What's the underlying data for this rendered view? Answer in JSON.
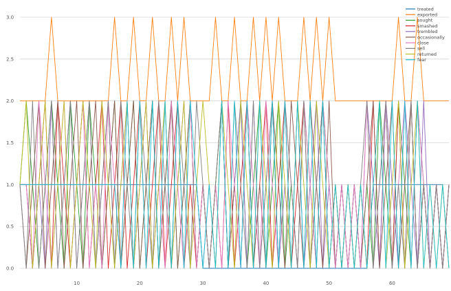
{
  "chart_data": {
    "type": "line",
    "title": "",
    "xlabel": "",
    "ylabel": "",
    "xlim": [
      1,
      69
    ],
    "ylim": [
      0,
      3
    ],
    "grid": true,
    "legend_position": "top-right",
    "x_ticks": [
      10,
      20,
      30,
      40,
      50,
      60
    ],
    "y_ticks": [
      0.0,
      0.5,
      1.0,
      1.5,
      2.0,
      2.5,
      3.0
    ],
    "x_tick_labels": [
      "10",
      "20",
      "30",
      "40",
      "50",
      "60"
    ],
    "y_tick_labels": [
      "0.0",
      "0.5",
      "1.0",
      "1.5",
      "2.0",
      "2.5",
      "3.0"
    ],
    "x": [
      1,
      2,
      3,
      4,
      5,
      6,
      7,
      8,
      9,
      10,
      11,
      12,
      13,
      14,
      15,
      16,
      17,
      18,
      19,
      20,
      21,
      22,
      23,
      24,
      25,
      26,
      27,
      28,
      29,
      30,
      31,
      32,
      33,
      34,
      35,
      36,
      37,
      38,
      39,
      40,
      41,
      42,
      43,
      44,
      45,
      46,
      47,
      48,
      49,
      50,
      51,
      52,
      53,
      54,
      55,
      56,
      57,
      58,
      59,
      60,
      61,
      62,
      63,
      64,
      65,
      66,
      67,
      68,
      69
    ],
    "series": [
      {
        "name": "treated",
        "color": "#1f77b4",
        "values": [
          1,
          1,
          1,
          1,
          1,
          1,
          1,
          1,
          1,
          1,
          1,
          1,
          1,
          1,
          1,
          1,
          1,
          1,
          1,
          1,
          1,
          1,
          1,
          1,
          1,
          1,
          1,
          1,
          1,
          0,
          0,
          0,
          0,
          0,
          0,
          0,
          0,
          0,
          0,
          0,
          0,
          0,
          0,
          0,
          0,
          0,
          0,
          0,
          0,
          0,
          0,
          0,
          0,
          0,
          0,
          0,
          1,
          1,
          1,
          1,
          1,
          1,
          1,
          1,
          1,
          1,
          1,
          1,
          0
        ]
      },
      {
        "name": "exported",
        "color": "#ff7f0e",
        "values": [
          2,
          2,
          2,
          2,
          2,
          3,
          2,
          2,
          2,
          2,
          2,
          2,
          2,
          2,
          2,
          3,
          2,
          2,
          3,
          2,
          2,
          3,
          2,
          2,
          3,
          2,
          3,
          2,
          2,
          2,
          2,
          3,
          2,
          2,
          3,
          2,
          2,
          3,
          2,
          3,
          2,
          3,
          2,
          2,
          2,
          3,
          2,
          3,
          2,
          3,
          2,
          2,
          2,
          2,
          2,
          2,
          2,
          2,
          2,
          2,
          3,
          2,
          2,
          3,
          2,
          2,
          2,
          2,
          2
        ]
      },
      {
        "name": "sought",
        "color": "#2ca02c",
        "values": [
          1,
          2,
          1,
          0,
          1,
          2,
          1,
          0,
          2,
          1,
          0,
          2,
          1,
          0,
          1,
          2,
          0,
          1,
          2,
          0,
          1,
          2,
          0,
          1,
          2,
          0,
          1,
          2,
          0,
          1,
          0,
          1,
          2,
          0,
          1,
          2,
          0,
          1,
          2,
          0,
          1,
          2,
          0,
          1,
          0,
          2,
          1,
          0,
          2,
          1,
          0,
          1,
          0,
          1,
          0,
          1,
          0,
          2,
          1,
          0,
          2,
          1,
          0,
          2,
          1,
          0,
          1,
          0,
          1
        ]
      },
      {
        "name": "smashed",
        "color": "#d62728",
        "values": [
          1,
          1,
          0,
          1,
          2,
          0,
          2,
          1,
          0,
          1,
          2,
          0,
          1,
          2,
          0,
          1,
          2,
          0,
          1,
          2,
          0,
          1,
          2,
          0,
          1,
          2,
          0,
          1,
          0,
          1,
          0,
          1,
          0,
          2,
          0,
          1,
          2,
          0,
          1,
          2,
          0,
          1,
          2,
          0,
          1,
          2,
          0,
          1,
          2,
          0,
          1,
          0,
          1,
          0,
          1,
          0,
          2,
          0,
          2,
          0,
          2,
          0,
          2,
          0,
          1,
          0,
          1,
          0,
          1
        ]
      },
      {
        "name": "trembled",
        "color": "#9467bd",
        "values": [
          1,
          1,
          0,
          1,
          0,
          2,
          0,
          1,
          2,
          0,
          1,
          2,
          0,
          1,
          2,
          0,
          1,
          2,
          0,
          1,
          2,
          0,
          1,
          2,
          0,
          1,
          2,
          0,
          1,
          0,
          1,
          0,
          2,
          0,
          1,
          2,
          0,
          2,
          0,
          1,
          2,
          0,
          1,
          0,
          2,
          0,
          1,
          2,
          0,
          1,
          0,
          1,
          0,
          1,
          0,
          2,
          1,
          0,
          2,
          1,
          0,
          2,
          1,
          0,
          2,
          0,
          1,
          0,
          1
        ]
      },
      {
        "name": "occasionally",
        "color": "#8c564b",
        "values": [
          1,
          0,
          1,
          2,
          0,
          1,
          2,
          0,
          1,
          2,
          0,
          1,
          2,
          0,
          1,
          2,
          0,
          1,
          2,
          0,
          1,
          2,
          0,
          1,
          2,
          0,
          1,
          2,
          0,
          1,
          0,
          1,
          2,
          0,
          1,
          0,
          2,
          0,
          1,
          0,
          2,
          1,
          0,
          2,
          1,
          0,
          2,
          1,
          0,
          2,
          0,
          1,
          0,
          1,
          0,
          1,
          2,
          0,
          1,
          2,
          0,
          1,
          2,
          0,
          1,
          0,
          1,
          0,
          1
        ]
      },
      {
        "name": "close",
        "color": "#e377c2",
        "values": [
          1,
          1,
          0,
          2,
          1,
          0,
          1,
          2,
          0,
          1,
          2,
          0,
          1,
          0,
          2,
          1,
          0,
          2,
          0,
          1,
          2,
          0,
          1,
          0,
          2,
          1,
          0,
          2,
          0,
          1,
          0,
          1,
          0,
          2,
          1,
          0,
          2,
          1,
          0,
          2,
          1,
          0,
          2,
          1,
          0,
          2,
          1,
          0,
          2,
          1,
          0,
          1,
          0,
          1,
          0,
          2,
          0,
          1,
          2,
          0,
          1,
          2,
          0,
          2,
          1,
          0,
          1,
          0,
          1
        ]
      },
      {
        "name": "sell",
        "color": "#7f7f7f",
        "values": [
          1,
          0,
          2,
          0,
          1,
          2,
          0,
          1,
          2,
          0,
          1,
          2,
          0,
          1,
          2,
          0,
          2,
          1,
          0,
          2,
          1,
          0,
          2,
          1,
          0,
          2,
          1,
          0,
          2,
          1,
          0,
          1,
          2,
          0,
          2,
          1,
          0,
          2,
          0,
          1,
          2,
          0,
          2,
          1,
          0,
          2,
          0,
          1,
          2,
          0,
          1,
          0,
          1,
          0,
          1,
          2,
          0,
          1,
          2,
          0,
          1,
          0,
          2,
          0,
          1,
          0,
          1,
          0,
          1
        ]
      },
      {
        "name": "returned",
        "color": "#bcbd22",
        "values": [
          1,
          2,
          0,
          1,
          2,
          0,
          1,
          2,
          0,
          1,
          2,
          1,
          0,
          2,
          1,
          0,
          1,
          2,
          0,
          1,
          2,
          0,
          1,
          2,
          0,
          1,
          2,
          0,
          1,
          2,
          1,
          0,
          2,
          1,
          0,
          2,
          1,
          0,
          2,
          1,
          0,
          2,
          1,
          0,
          2,
          1,
          0,
          2,
          1,
          0,
          1,
          0,
          1,
          0,
          1,
          0,
          1,
          2,
          0,
          1,
          2,
          0,
          1,
          2,
          0,
          1,
          0,
          1,
          0
        ]
      },
      {
        "name": "fear",
        "color": "#17becf",
        "values": [
          1,
          1,
          1,
          1,
          1,
          1,
          1,
          1,
          1,
          1,
          1,
          1,
          1,
          1,
          1,
          1,
          0,
          2,
          0,
          2,
          0,
          2,
          0,
          2,
          0,
          2,
          0,
          2,
          1,
          0,
          1,
          0,
          2,
          0,
          2,
          0,
          2,
          0,
          2,
          0,
          2,
          0,
          2,
          0,
          2,
          0,
          2,
          0,
          2,
          0,
          1,
          0,
          1,
          0,
          1,
          0,
          1,
          2,
          0,
          2,
          0,
          2,
          0,
          2,
          0,
          1,
          0,
          1,
          0
        ]
      }
    ]
  }
}
